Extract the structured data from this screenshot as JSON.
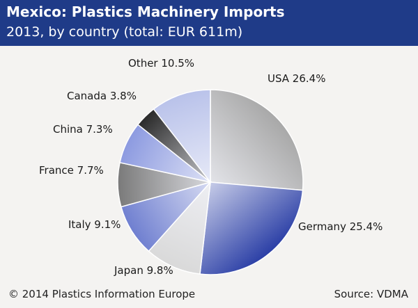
{
  "header": {
    "title": "Mexico: Plastics Machinery Imports",
    "subtitle": "2013, by country (total: EUR 611m)"
  },
  "footer": {
    "copyright": "© 2014 Plastics Information Europe",
    "source": "Source: VDMA"
  },
  "colors": {
    "header_bg": "#1f3b88",
    "background": "#f4f3f1"
  },
  "chart_data": {
    "type": "pie",
    "title": "Mexico: Plastics Machinery Imports",
    "subtitle": "2013, by country (total: EUR 611m)",
    "unit": "%",
    "slices": [
      {
        "name": "USA",
        "value": 26.4,
        "label": "USA 26.4%",
        "color": "#a8a8a8"
      },
      {
        "name": "Germany",
        "value": 25.4,
        "label": "Germany 25.4%",
        "color": "#2b3fa6"
      },
      {
        "name": "Japan",
        "value": 9.8,
        "label": "Japan 9.8%",
        "color": "#d9d9d9"
      },
      {
        "name": "Italy",
        "value": 9.1,
        "label": "Italy 9.1%",
        "color": "#6f7fd0"
      },
      {
        "name": "France",
        "value": 7.7,
        "label": "France 7.7%",
        "color": "#7a7a7a"
      },
      {
        "name": "China",
        "value": 7.3,
        "label": "China 7.3%",
        "color": "#8c9ae0"
      },
      {
        "name": "Canada",
        "value": 3.8,
        "label": "Canada 3.8%",
        "color": "#2a2a2a"
      },
      {
        "name": "Other",
        "value": 10.5,
        "label": "Other 10.5%",
        "color": "#b9c2ea"
      }
    ]
  }
}
